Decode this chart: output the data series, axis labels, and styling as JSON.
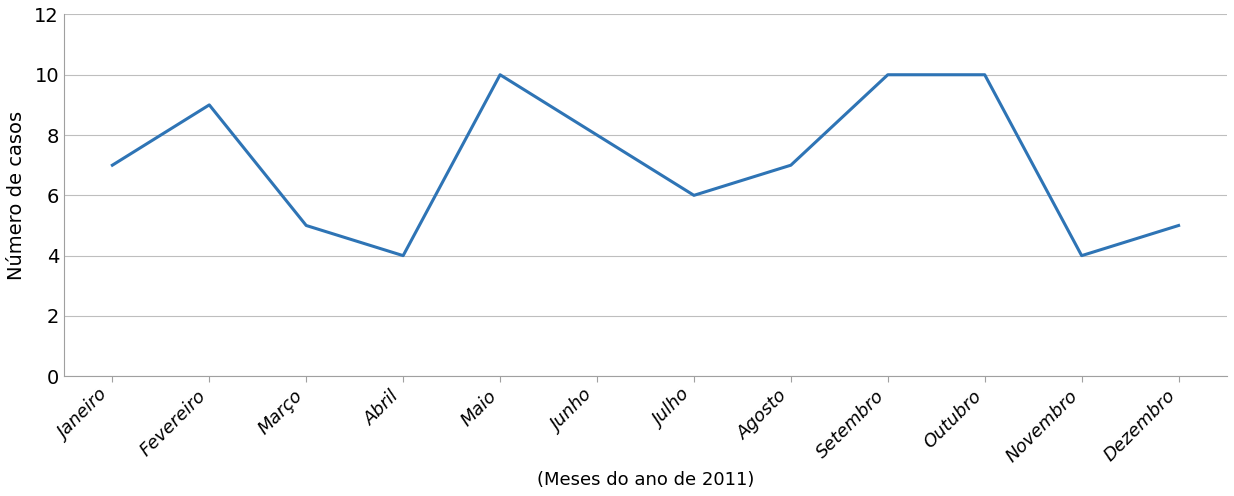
{
  "months": [
    "Janeiro",
    "Fevereiro",
    "Março",
    "Abril",
    "Maio",
    "Junho",
    "Julho",
    "Agosto",
    "Setembro",
    "Outubro",
    "Novembro",
    "Dezembro"
  ],
  "values": [
    7,
    9,
    5,
    4,
    10,
    8,
    6,
    7,
    10,
    10,
    4,
    5
  ],
  "line_color": "#2E74B5",
  "line_width": 2.2,
  "ylabel": "Número de casos",
  "xlabel": "(Meses do ano de 2011)",
  "ylim": [
    0,
    12
  ],
  "yticks": [
    0,
    2,
    4,
    6,
    8,
    10,
    12
  ],
  "background_color": "#ffffff",
  "grid_color": "#bebebe",
  "ylabel_fontsize": 14,
  "xlabel_fontsize": 13,
  "tick_fontsize": 13,
  "ytick_fontsize": 14
}
